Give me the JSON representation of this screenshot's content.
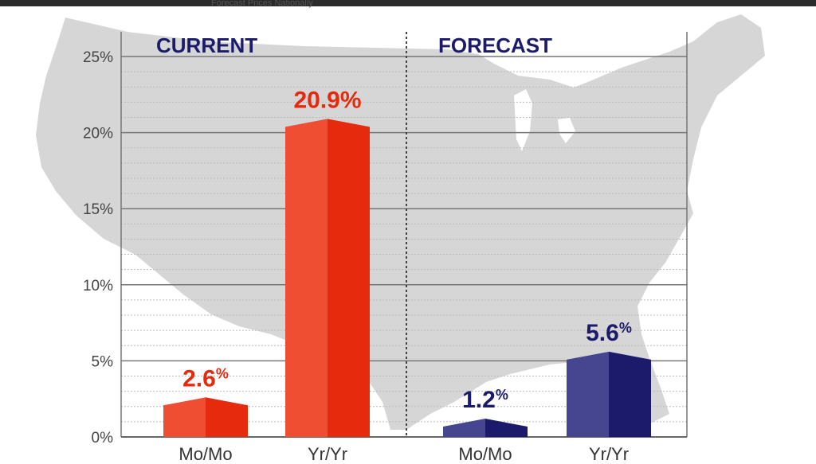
{
  "page": {
    "top_caption": "Forecast Prices Nationally"
  },
  "chart_data": {
    "type": "bar",
    "title": "",
    "ylim": [
      0,
      25
    ],
    "yticks": [
      0,
      5,
      10,
      15,
      20,
      25
    ],
    "ytick_labels": [
      "0%",
      "5%",
      "10%",
      "15%",
      "20%",
      "25%"
    ],
    "grid": true,
    "groups": [
      {
        "name": "CURRENT",
        "color_light": "#f04e33",
        "color_dark": "#e52a0e",
        "bars": [
          {
            "category": "Mo/Mo",
            "value": 2.6,
            "label_num": "2.6",
            "label_unit": "%"
          },
          {
            "category": "Yr/Yr",
            "value": 20.9,
            "label_num": "20.9%",
            "label_unit": ""
          }
        ]
      },
      {
        "name": "FORECAST",
        "color_light": "#45468f",
        "color_dark": "#1c1a6b",
        "bars": [
          {
            "category": "Mo/Mo",
            "value": 1.2,
            "label_num": "1.2",
            "label_unit": "%"
          },
          {
            "category": "Yr/Yr",
            "value": 5.6,
            "label_num": "5.6",
            "label_unit": "%"
          }
        ]
      }
    ],
    "colors": {
      "current_text": "#e52a0e",
      "forecast_text": "#1c1a6b",
      "axis_text": "#444444",
      "grid_major": "#777777",
      "grid_minor": "#bbbbbb",
      "map": "#d6d6d6"
    }
  }
}
